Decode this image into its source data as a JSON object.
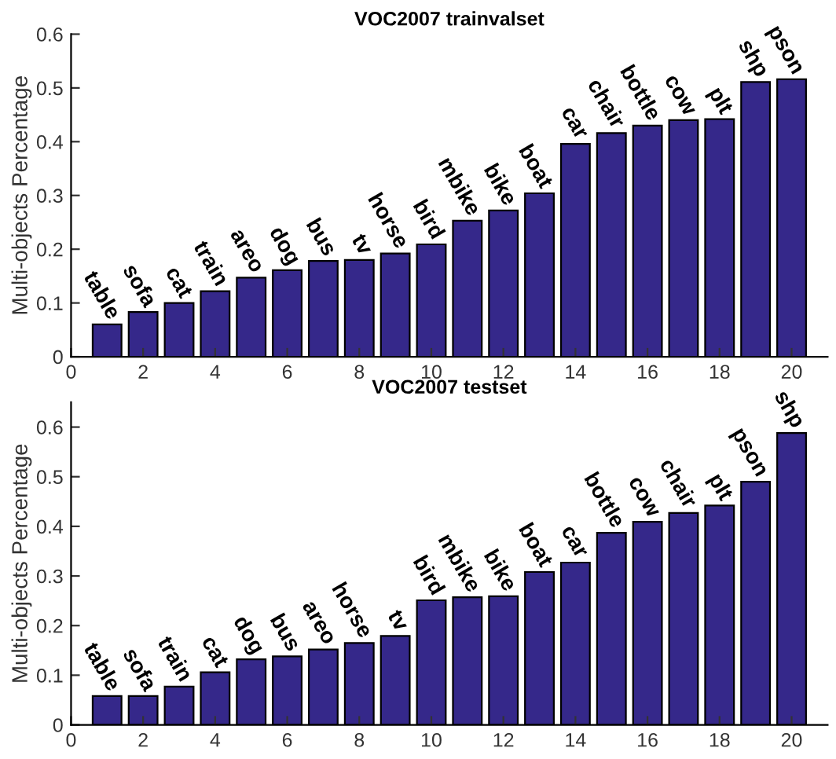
{
  "chart_data": [
    {
      "type": "bar",
      "title": "VOC2007 trainvalset",
      "ylabel": "Multi-objects Percentage",
      "x": [
        1,
        2,
        3,
        4,
        5,
        6,
        7,
        8,
        9,
        10,
        11,
        12,
        13,
        14,
        15,
        16,
        17,
        18,
        19,
        20
      ],
      "values": [
        0.06,
        0.083,
        0.1,
        0.122,
        0.147,
        0.161,
        0.178,
        0.18,
        0.192,
        0.209,
        0.253,
        0.272,
        0.304,
        0.396,
        0.416,
        0.43,
        0.44,
        0.442,
        0.511,
        0.516
      ],
      "color": "#35288a",
      "xlim": [
        0,
        21
      ],
      "xticks": [
        0,
        2,
        4,
        6,
        8,
        10,
        12,
        14,
        16,
        18,
        20
      ],
      "ylim": [
        0,
        0.6
      ],
      "yticks": [
        0,
        0.1,
        0.2,
        0.3,
        0.4,
        0.5,
        0.6
      ],
      "grid": false,
      "annotations": [
        {
          "text": "table",
          "x": 1,
          "y": 0.06
        },
        {
          "text": "sofa",
          "x": 2,
          "y": 0.083
        },
        {
          "text": "cat",
          "x": 3,
          "y": 0.1
        },
        {
          "text": "train",
          "x": 4,
          "y": 0.122
        },
        {
          "text": "areo",
          "x": 5,
          "y": 0.147
        },
        {
          "text": "dog",
          "x": 6,
          "y": 0.161
        },
        {
          "text": "bus",
          "x": 7,
          "y": 0.178
        },
        {
          "text": "tv",
          "x": 8,
          "y": 0.18
        },
        {
          "text": "horse",
          "x": 9,
          "y": 0.192
        },
        {
          "text": "bird",
          "x": 10,
          "y": 0.209
        },
        {
          "text": "mbike",
          "x": 11,
          "y": 0.253
        },
        {
          "text": "bike",
          "x": 12,
          "y": 0.272
        },
        {
          "text": "boat",
          "x": 13,
          "y": 0.304
        },
        {
          "text": "car",
          "x": 14,
          "y": 0.396
        },
        {
          "text": "chair",
          "x": 15,
          "y": 0.416
        },
        {
          "text": "bottle",
          "x": 16,
          "y": 0.43
        },
        {
          "text": "cow",
          "x": 17,
          "y": 0.44
        },
        {
          "text": "plt",
          "x": 18,
          "y": 0.442
        },
        {
          "text": "shp",
          "x": 19,
          "y": 0.511
        },
        {
          "text": "pson",
          "x": 20,
          "y": 0.516
        }
      ]
    },
    {
      "type": "bar",
      "title": "VOC2007 testset",
      "ylabel": "Multi-objects Percentage",
      "x": [
        1,
        2,
        3,
        4,
        5,
        6,
        7,
        8,
        9,
        10,
        11,
        12,
        13,
        14,
        15,
        16,
        17,
        18,
        19,
        20
      ],
      "values": [
        0.058,
        0.058,
        0.077,
        0.106,
        0.132,
        0.138,
        0.152,
        0.165,
        0.179,
        0.251,
        0.257,
        0.259,
        0.308,
        0.327,
        0.387,
        0.409,
        0.427,
        0.442,
        0.49,
        0.588
      ],
      "color": "#35288a",
      "xlim": [
        0,
        21
      ],
      "xticks": [
        0,
        2,
        4,
        6,
        8,
        10,
        12,
        14,
        16,
        18,
        20
      ],
      "ylim": [
        0,
        0.65
      ],
      "yticks": [
        0,
        0.1,
        0.2,
        0.3,
        0.4,
        0.5,
        0.6
      ],
      "grid": false,
      "annotations": [
        {
          "text": "table",
          "x": 1,
          "y": 0.058
        },
        {
          "text": "sofa",
          "x": 2,
          "y": 0.058
        },
        {
          "text": "train",
          "x": 3,
          "y": 0.077
        },
        {
          "text": "cat",
          "x": 4,
          "y": 0.106
        },
        {
          "text": "dog",
          "x": 5,
          "y": 0.132
        },
        {
          "text": "bus",
          "x": 6,
          "y": 0.138
        },
        {
          "text": "areo",
          "x": 7,
          "y": 0.152
        },
        {
          "text": "horse",
          "x": 8,
          "y": 0.165
        },
        {
          "text": "tv",
          "x": 9,
          "y": 0.179
        },
        {
          "text": "bird",
          "x": 10,
          "y": 0.251
        },
        {
          "text": "mbike",
          "x": 11,
          "y": 0.257
        },
        {
          "text": "bike",
          "x": 12,
          "y": 0.259
        },
        {
          "text": "boat",
          "x": 13,
          "y": 0.308
        },
        {
          "text": "car",
          "x": 14,
          "y": 0.327
        },
        {
          "text": "bottle",
          "x": 15,
          "y": 0.387
        },
        {
          "text": "cow",
          "x": 16,
          "y": 0.409
        },
        {
          "text": "chair",
          "x": 17,
          "y": 0.427
        },
        {
          "text": "plt",
          "x": 18,
          "y": 0.442
        },
        {
          "text": "pson",
          "x": 19,
          "y": 0.49
        },
        {
          "text": "shp",
          "x": 20,
          "y": 0.588
        }
      ]
    }
  ]
}
